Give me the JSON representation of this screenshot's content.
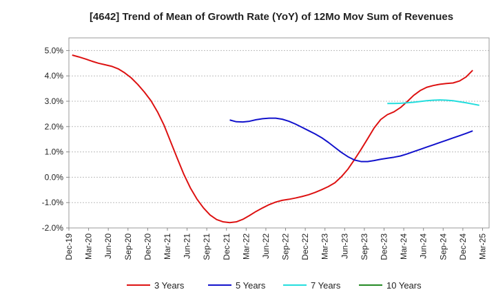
{
  "chart_data": {
    "type": "line",
    "title": "[4642]  Trend of Mean of Growth Rate (YoY) of 12Mo Mov Sum of Revenues",
    "xlabel": "",
    "ylabel": "",
    "ylim": [
      -2.0,
      5.5
    ],
    "y_ticks": [
      5.0,
      4.0,
      3.0,
      2.0,
      1.0,
      0.0,
      -1.0,
      -2.0
    ],
    "y_tick_labels": [
      "5.0%",
      "4.0%",
      "3.0%",
      "2.0%",
      "1.0%",
      "0.0%",
      "-1.0%",
      "-2.0%"
    ],
    "x_tick_labels": [
      "Dec-19",
      "Mar-20",
      "Jun-20",
      "Sep-20",
      "Dec-20",
      "Mar-21",
      "Jun-21",
      "Sep-21",
      "Dec-21",
      "Mar-22",
      "Jun-22",
      "Sep-22",
      "Dec-22",
      "Mar-23",
      "Jun-23",
      "Sep-23",
      "Dec-23",
      "Mar-24",
      "Jun-24",
      "Sep-24",
      "Dec-24",
      "Mar-25"
    ],
    "x_count": 64,
    "grid": true,
    "legend_position": "bottom",
    "series": [
      {
        "name": "3 Years",
        "color": "#dd1111",
        "start_index": 0,
        "values": [
          4.82,
          4.75,
          4.67,
          4.58,
          4.5,
          4.44,
          4.38,
          4.28,
          4.12,
          3.92,
          3.66,
          3.36,
          3.02,
          2.58,
          2.05,
          1.4,
          0.75,
          0.12,
          -0.42,
          -0.86,
          -1.21,
          -1.49,
          -1.67,
          -1.76,
          -1.79,
          -1.76,
          -1.66,
          -1.51,
          -1.35,
          -1.21,
          -1.08,
          -0.98,
          -0.91,
          -0.87,
          -0.82,
          -0.76,
          -0.69,
          -0.6,
          -0.49,
          -0.37,
          -0.22,
          0.02,
          0.32,
          0.7,
          1.1,
          1.52,
          1.95,
          2.28,
          2.47,
          2.58,
          2.75,
          2.98,
          3.23,
          3.42,
          3.55,
          3.62,
          3.67,
          3.7,
          3.72,
          3.8,
          3.96,
          4.22
        ]
      },
      {
        "name": "5 Years",
        "color": "#1111cc",
        "start_index": 24,
        "values": [
          2.26,
          2.19,
          2.18,
          2.21,
          2.27,
          2.31,
          2.33,
          2.33,
          2.29,
          2.21,
          2.1,
          1.97,
          1.84,
          1.71,
          1.56,
          1.38,
          1.18,
          0.98,
          0.81,
          0.68,
          0.62,
          0.62,
          0.66,
          0.71,
          0.75,
          0.79,
          0.84,
          0.92,
          1.01,
          1.1,
          1.19,
          1.28,
          1.37,
          1.46,
          1.55,
          1.64,
          1.73,
          1.83
        ]
      },
      {
        "name": "7 Years",
        "color": "#22dddd",
        "start_index": 48,
        "values": [
          2.91,
          2.91,
          2.92,
          2.94,
          2.96,
          2.99,
          3.02,
          3.04,
          3.05,
          3.04,
          3.02,
          2.98,
          2.94,
          2.89,
          2.84
        ]
      },
      {
        "name": "10 Years",
        "color": "#228822",
        "start_index": 0,
        "values": []
      }
    ]
  }
}
